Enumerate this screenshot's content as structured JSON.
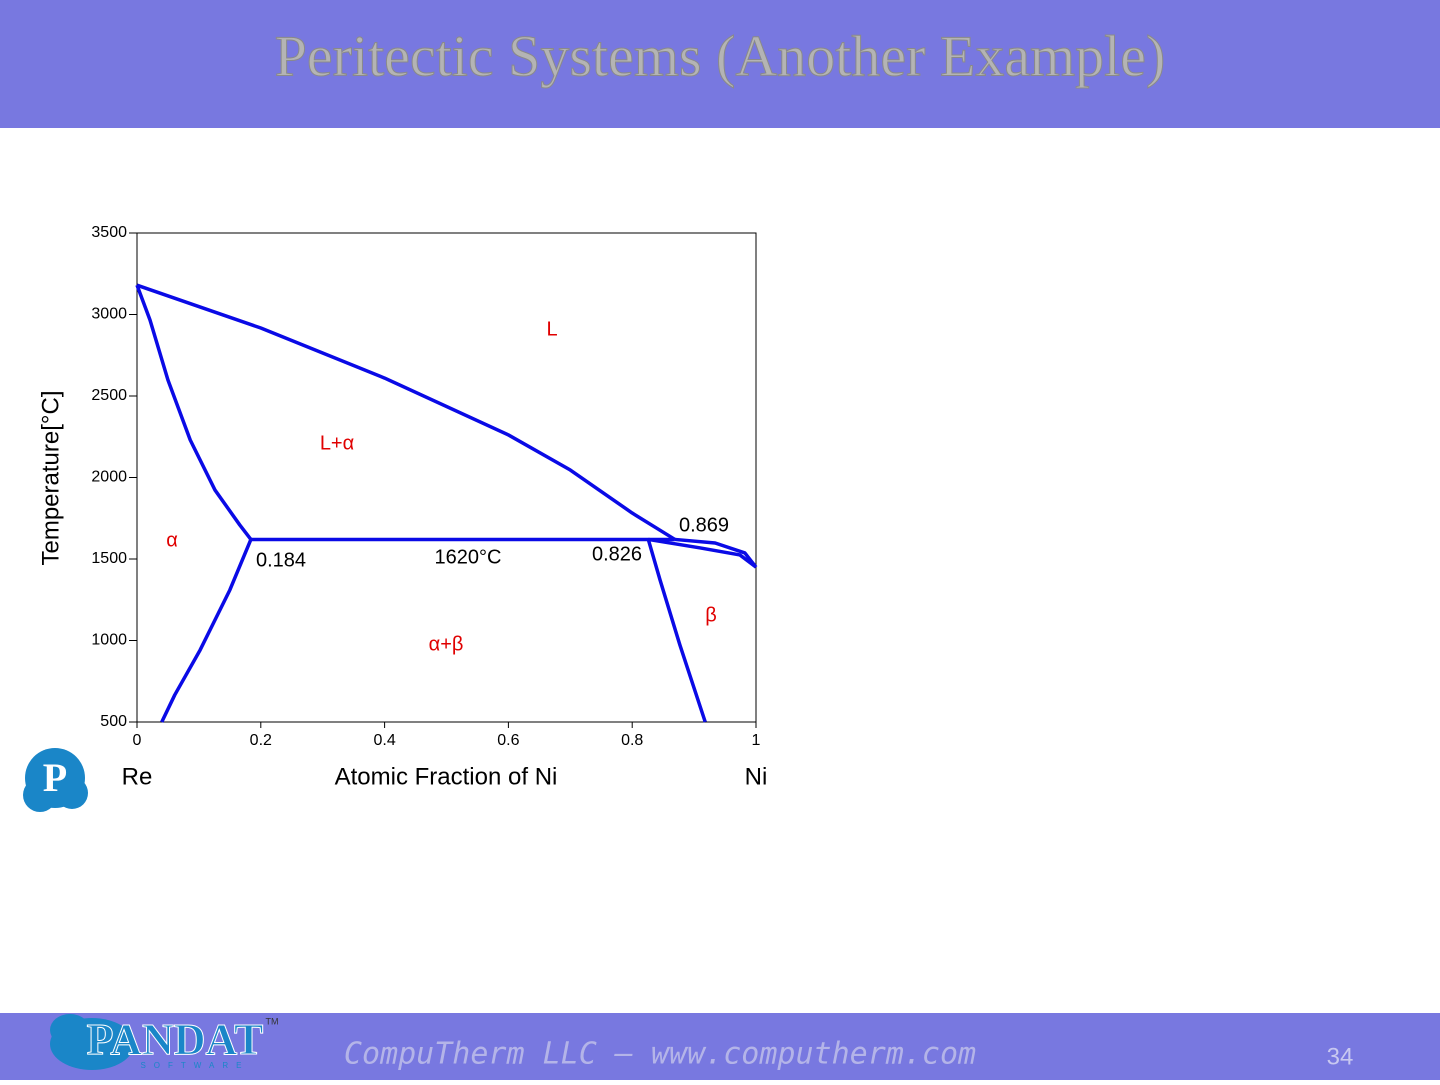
{
  "slide": {
    "title": "Peritectic Systems (Another Example)",
    "footer": "CompuTherm LLC – www.computherm.com",
    "page": "34",
    "logo_letter": "P",
    "brand": "PANDAT",
    "brand_sub": "SOFTWARE",
    "brand_tm": "TM"
  },
  "chart_data": {
    "type": "line",
    "xlabel": "Atomic Fraction of Ni",
    "ylabel": "Temperature[°C]",
    "x_left_label": "Re",
    "x_right_label": "Ni",
    "xlim": [
      0,
      1
    ],
    "xticks": [
      0,
      0.2,
      0.4,
      0.6,
      0.8,
      1
    ],
    "ylim": [
      500,
      3500
    ],
    "yticks": [
      500,
      1000,
      1500,
      2000,
      2500,
      3000,
      3500
    ],
    "series": [
      {
        "color": "#0a0ae6",
        "x": [
          0,
          0.2,
          0.4,
          0.6,
          0.7,
          0.8,
          0.869
        ],
        "values": [
          3180,
          2917,
          2610,
          2261,
          2046,
          1782,
          1620
        ]
      },
      {
        "color": "#0a0ae6",
        "x": [
          0,
          0.021,
          0.05,
          0.086,
          0.126,
          0.166,
          0.184
        ],
        "values": [
          3180,
          2966,
          2598,
          2230,
          1923,
          1709,
          1620
        ]
      },
      {
        "color": "#0a0ae6",
        "x": [
          0.184,
          0.869
        ],
        "values": [
          1620,
          1620
        ]
      },
      {
        "color": "#0a0ae6",
        "x": [
          0.184,
          0.15,
          0.102,
          0.061,
          0.04
        ],
        "values": [
          1620,
          1310,
          942,
          666,
          500
        ]
      },
      {
        "color": "#0a0ae6",
        "x": [
          0.826,
          0.845,
          0.877,
          0.918
        ],
        "values": [
          1620,
          1371,
          973,
          500
        ]
      },
      {
        "color": "#0a0ae6",
        "x": [
          0.826,
          0.91,
          0.974,
          1
        ],
        "values": [
          1620,
          1568,
          1525,
          1450
        ]
      },
      {
        "color": "#0a0ae6",
        "x": [
          0.869,
          0.934,
          0.982,
          1
        ],
        "values": [
          1620,
          1598,
          1537,
          1450
        ]
      }
    ],
    "annotations": [
      {
        "text": "L",
        "color": "#e00000"
      },
      {
        "text": "L+α",
        "color": "#e00000"
      },
      {
        "text": "α",
        "color": "#e00000"
      },
      {
        "text": "α+β",
        "color": "#e00000"
      },
      {
        "text": "β",
        "color": "#e00000"
      },
      {
        "text": "0.869",
        "color": "#000000"
      },
      {
        "text": "0.184",
        "color": "#000000"
      },
      {
        "text": "0.826",
        "color": "#000000"
      },
      {
        "text": "1620°C",
        "color": "#000000"
      }
    ]
  }
}
